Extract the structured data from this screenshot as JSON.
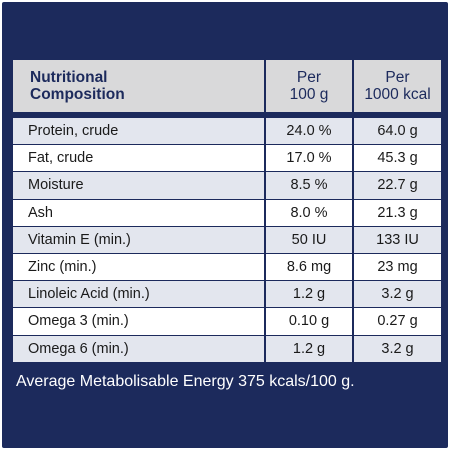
{
  "table": {
    "header": {
      "title_line1": "Nutritional",
      "title_line2": "Composition",
      "col1_line1": "Per",
      "col1_line2": "100 g",
      "col2_line1": "Per",
      "col2_line2": "1000 kcal"
    },
    "rows": [
      {
        "name": "Protein, crude",
        "per100g": "24.0 %",
        "per1000kcal": "64.0 g"
      },
      {
        "name": "Fat, crude",
        "per100g": "17.0 %",
        "per1000kcal": "45.3 g"
      },
      {
        "name": "Moisture",
        "per100g": "8.5 %",
        "per1000kcal": "22.7 g"
      },
      {
        "name": "Ash",
        "per100g": "8.0 %",
        "per1000kcal": "21.3 g"
      },
      {
        "name": "Vitamin E (min.)",
        "per100g": "50 IU",
        "per1000kcal": "133 IU"
      },
      {
        "name": "Zinc (min.)",
        "per100g": "8.6 mg",
        "per1000kcal": "23 mg"
      },
      {
        "name": "Linoleic Acid (min.)",
        "per100g": "1.2 g",
        "per1000kcal": "3.2 g"
      },
      {
        "name": "Omega 3 (min.)",
        "per100g": "0.10 g",
        "per1000kcal": "0.27 g"
      },
      {
        "name": "Omega 6 (min.)",
        "per100g": "1.2 g",
        "per1000kcal": "3.2 g"
      }
    ]
  },
  "footer": "Average Metabolisable Energy 375 kcals/100 g.",
  "colors": {
    "panel": "#1c2a5c",
    "header_bg": "#d9d9da",
    "row_shade": "#e3e6ee",
    "row_plain": "#ffffff"
  }
}
